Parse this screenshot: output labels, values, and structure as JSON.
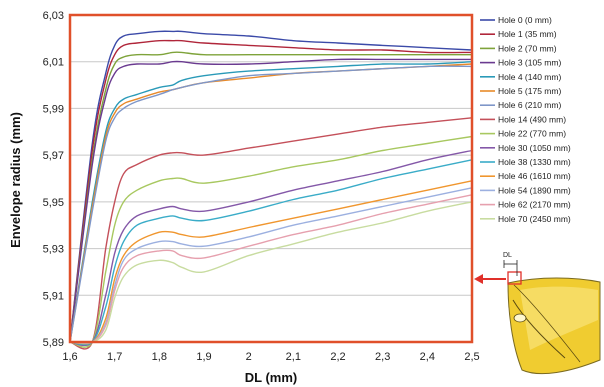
{
  "chart_data": {
    "type": "line",
    "xlabel": "DL (mm)",
    "ylabel": "Envelope radius (mm)",
    "xlim": [
      1.6,
      2.5
    ],
    "ylim": [
      5.89,
      6.03
    ],
    "x_ticks": [
      "1,6",
      "1,7",
      "1,8",
      "1,9",
      "2",
      "2,1",
      "2,2",
      "2,3",
      "2,4",
      "2,5"
    ],
    "y_ticks": [
      "5,89",
      "5,91",
      "5,93",
      "5,95",
      "5,97",
      "5,99",
      "6,01",
      "6,03"
    ],
    "grid": true,
    "legend_position": "right",
    "inset_label": "DL",
    "x": [
      1.6,
      1.65,
      1.68,
      1.7,
      1.72,
      1.75,
      1.8,
      1.83,
      1.85,
      1.9,
      2.0,
      2.1,
      2.2,
      2.3,
      2.4,
      2.5
    ],
    "series": [
      {
        "name": "Hole 0 (0 mm)",
        "color": "#3b4aa8",
        "values": [
          5.89,
          5.975,
          6.005,
          6.017,
          6.021,
          6.022,
          6.023,
          6.023,
          6.023,
          6.022,
          6.021,
          6.019,
          6.018,
          6.017,
          6.016,
          6.015
        ]
      },
      {
        "name": "Hole 1 (35 mm)",
        "color": "#b0263a",
        "values": [
          5.89,
          5.972,
          6.002,
          6.013,
          6.017,
          6.018,
          6.019,
          6.019,
          6.019,
          6.018,
          6.017,
          6.016,
          6.015,
          6.015,
          6.014,
          6.014
        ]
      },
      {
        "name": "Hole 2 (70 mm)",
        "color": "#7ea33a",
        "values": [
          5.89,
          5.968,
          5.998,
          6.009,
          6.012,
          6.013,
          6.013,
          6.014,
          6.014,
          6.013,
          6.013,
          6.013,
          6.013,
          6.013,
          6.013,
          6.013
        ]
      },
      {
        "name": "Hole 3 (105 mm)",
        "color": "#6a3a90",
        "values": [
          5.89,
          5.966,
          5.995,
          6.005,
          6.008,
          6.009,
          6.009,
          6.01,
          6.01,
          6.009,
          6.009,
          6.01,
          6.011,
          6.011,
          6.011,
          6.011
        ]
      },
      {
        "name": "Hole 4 (140 mm)",
        "color": "#2a9ab8",
        "values": [
          5.89,
          5.95,
          5.98,
          5.99,
          5.994,
          5.996,
          5.999,
          6.0,
          6.002,
          6.004,
          6.006,
          6.007,
          6.008,
          6.009,
          6.009,
          6.01
        ]
      },
      {
        "name": "Hole 5 (175 mm)",
        "color": "#e88a2a",
        "values": [
          5.89,
          5.948,
          5.978,
          5.988,
          5.992,
          5.994,
          5.997,
          5.998,
          5.999,
          6.001,
          6.003,
          6.005,
          6.006,
          6.007,
          6.008,
          6.009
        ]
      },
      {
        "name": "Hole 6 (210 mm)",
        "color": "#7e96c8",
        "values": [
          5.89,
          5.946,
          5.976,
          5.986,
          5.99,
          5.993,
          5.996,
          5.998,
          5.999,
          6.001,
          6.004,
          6.005,
          6.006,
          6.007,
          6.008,
          6.008
        ]
      },
      {
        "name": "Hole 14 (490 mm)",
        "color": "#c4505a",
        "values": [
          5.89,
          5.89,
          5.93,
          5.95,
          5.962,
          5.966,
          5.97,
          5.971,
          5.971,
          5.97,
          5.973,
          5.976,
          5.979,
          5.982,
          5.984,
          5.986
        ]
      },
      {
        "name": "Hole 22 (770 mm)",
        "color": "#a8c860",
        "values": [
          5.89,
          5.89,
          5.92,
          5.94,
          5.95,
          5.955,
          5.959,
          5.96,
          5.96,
          5.958,
          5.961,
          5.965,
          5.968,
          5.972,
          5.975,
          5.978
        ]
      },
      {
        "name": "Hole 30 (1050 mm)",
        "color": "#8458a8",
        "values": [
          5.89,
          5.89,
          5.91,
          5.928,
          5.938,
          5.944,
          5.947,
          5.948,
          5.947,
          5.946,
          5.95,
          5.955,
          5.959,
          5.963,
          5.968,
          5.972
        ]
      },
      {
        "name": "Hole 38 (1330 mm)",
        "color": "#3aacc8",
        "values": [
          5.89,
          5.89,
          5.905,
          5.922,
          5.933,
          5.94,
          5.943,
          5.944,
          5.943,
          5.942,
          5.946,
          5.951,
          5.955,
          5.96,
          5.964,
          5.968
        ]
      },
      {
        "name": "Hole 46 (1610 mm)",
        "color": "#f0962e",
        "values": [
          5.89,
          5.89,
          5.9,
          5.917,
          5.927,
          5.933,
          5.937,
          5.937,
          5.936,
          5.935,
          5.939,
          5.943,
          5.947,
          5.951,
          5.955,
          5.959
        ]
      },
      {
        "name": "Hole 54 (1890 mm)",
        "color": "#9cb0e0",
        "values": [
          5.89,
          5.89,
          5.898,
          5.914,
          5.925,
          5.93,
          5.933,
          5.933,
          5.932,
          5.931,
          5.935,
          5.94,
          5.944,
          5.948,
          5.952,
          5.956
        ]
      },
      {
        "name": "Hole 62 (2170 mm)",
        "color": "#e6a0ae",
        "values": [
          5.89,
          5.89,
          5.897,
          5.912,
          5.922,
          5.927,
          5.929,
          5.929,
          5.927,
          5.926,
          5.931,
          5.936,
          5.94,
          5.945,
          5.949,
          5.953
        ]
      },
      {
        "name": "Hole 70 (2450 mm)",
        "color": "#c8dca0",
        "values": [
          5.89,
          5.89,
          5.895,
          5.909,
          5.918,
          5.923,
          5.925,
          5.924,
          5.922,
          5.92,
          5.927,
          5.932,
          5.937,
          5.941,
          5.946,
          5.95
        ]
      }
    ]
  }
}
